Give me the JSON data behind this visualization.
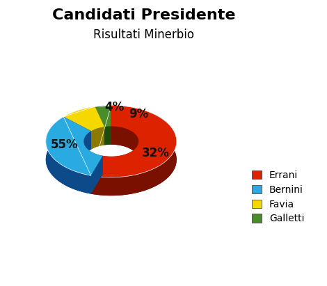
{
  "title": "Candidati Presidente",
  "subtitle": "Risultati Minerbio",
  "labels": [
    "Errani",
    "Bernini",
    "Favia",
    "Galletti"
  ],
  "values": [
    55,
    32,
    9,
    4
  ],
  "colors": [
    "#dd2200",
    "#29aae1",
    "#f5d800",
    "#4a8c2a"
  ],
  "shadow_colors": [
    "#7a1000",
    "#0d4a8a",
    "#8a7a00",
    "#1e4a0a"
  ],
  "pct_labels": [
    "55%",
    "32%",
    "9%",
    "4%"
  ],
  "background_color": "#ffffff",
  "title_fontsize": 16,
  "subtitle_fontsize": 12,
  "legend_fontsize": 10,
  "pct_fontsize": 12
}
